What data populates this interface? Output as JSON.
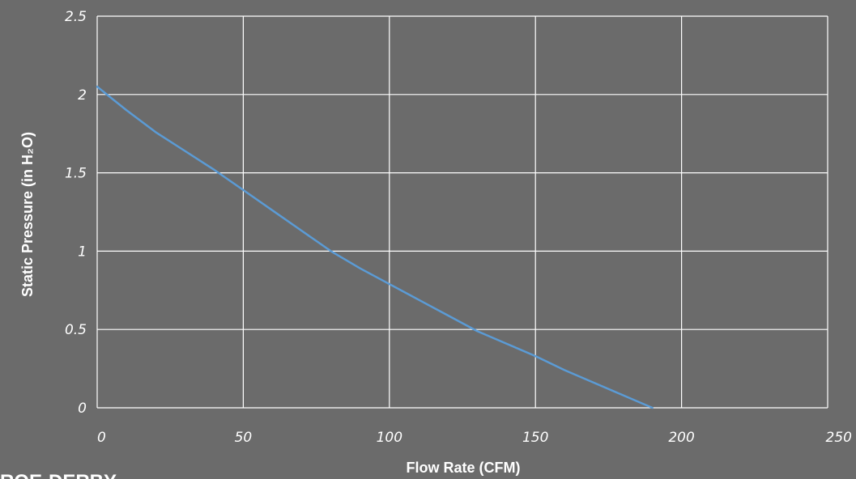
{
  "chart_data": {
    "type": "line",
    "title": "",
    "xlabel": "Flow Rate (CFM)",
    "ylabel": "Static Pressure (in H₂O)",
    "xlim": [
      0,
      250
    ],
    "ylim": [
      0,
      2.5
    ],
    "x_ticks": [
      "0",
      "50",
      "100",
      "150",
      "200",
      "250"
    ],
    "y_ticks": [
      "0",
      "0.5",
      "1",
      "1.5",
      "2",
      "2.5"
    ],
    "grid": true,
    "series": [
      {
        "color": "#5b9bd5",
        "x": [
          0,
          10,
          20,
          30,
          40,
          50,
          60,
          70,
          80,
          90,
          100,
          110,
          120,
          130,
          140,
          150,
          160,
          170,
          180,
          190
        ],
        "y": [
          2.05,
          1.9,
          1.76,
          1.64,
          1.52,
          1.39,
          1.26,
          1.13,
          1.0,
          0.89,
          0.79,
          0.69,
          0.59,
          0.49,
          0.41,
          0.33,
          0.24,
          0.16,
          0.08,
          0.0
        ]
      }
    ]
  }
}
